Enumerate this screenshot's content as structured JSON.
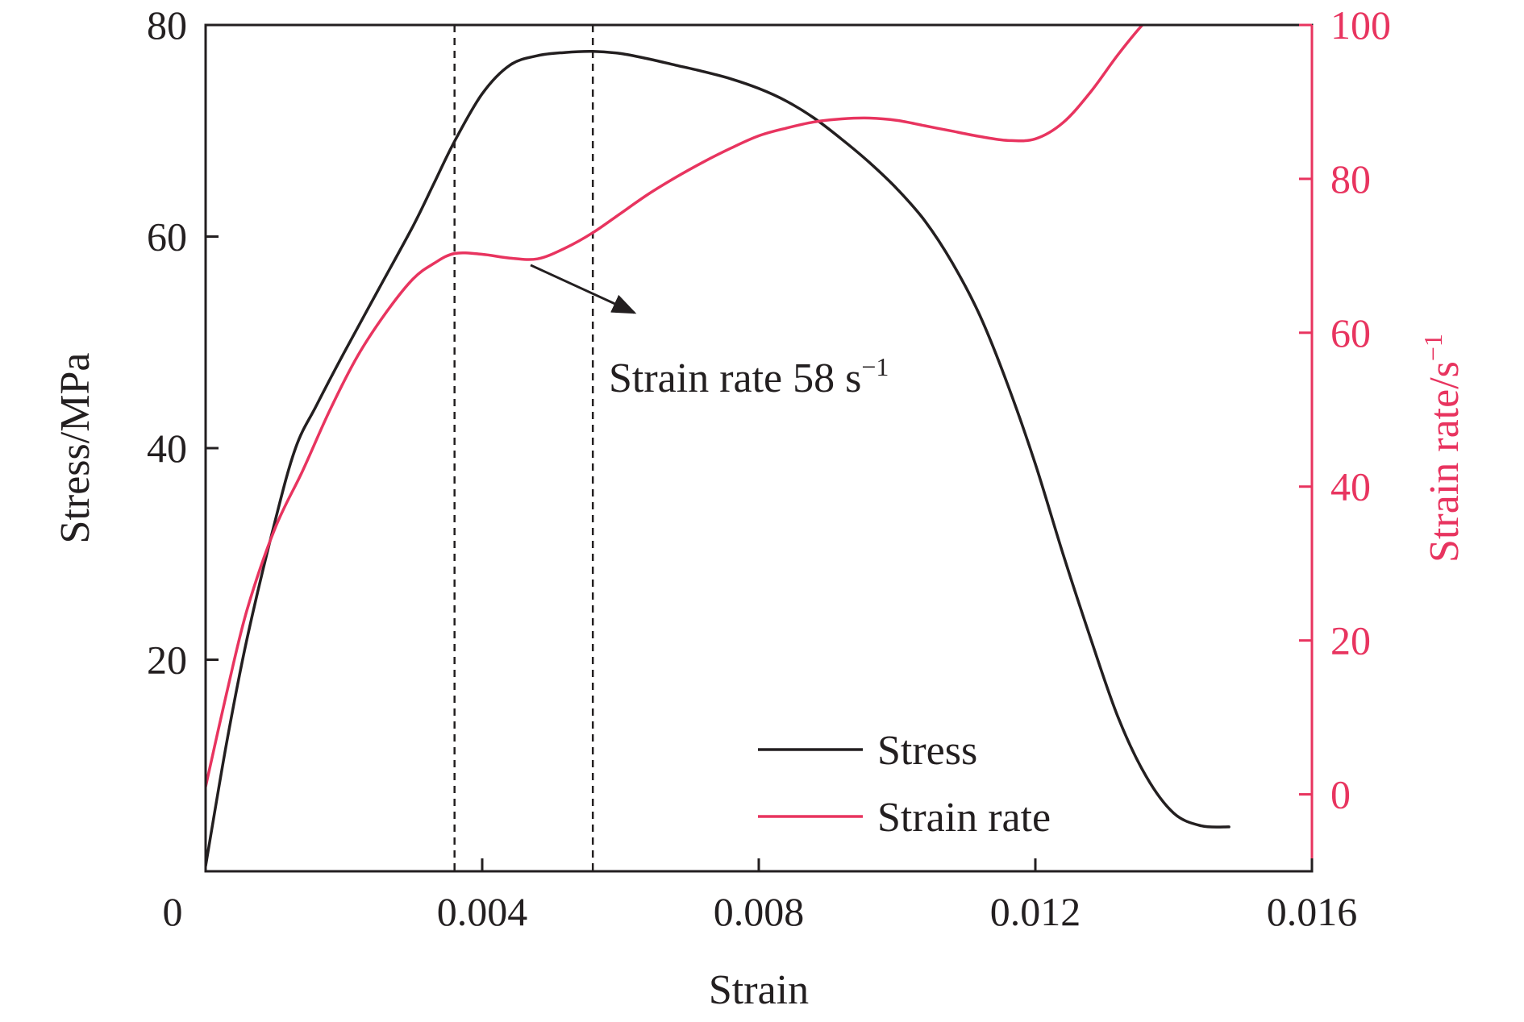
{
  "chart_data": {
    "type": "line",
    "xlabel": "Strain",
    "ylabel": "Stress/MPa",
    "y2label": "Strain rate/s",
    "y2label_sup": "−1",
    "xlim": [
      0,
      0.016
    ],
    "ylim": [
      0,
      80
    ],
    "y2lim": [
      -10,
      100
    ],
    "x_ticks": [
      0.004,
      0.008,
      0.012,
      0.016
    ],
    "x_tick_labels": [
      "0.004",
      "0.008",
      "0.012",
      "0.016"
    ],
    "x_origin_label": "0",
    "y_ticks": [
      20,
      40,
      60,
      80
    ],
    "y_tick_labels": [
      "20",
      "40",
      "60",
      "80"
    ],
    "y2_ticks": [
      0,
      20,
      40,
      60,
      80,
      100
    ],
    "y2_tick_labels": [
      "0",
      "20",
      "40",
      "60",
      "80",
      "100"
    ],
    "grid": false,
    "legend_position": "bottom-right",
    "colors": {
      "stress": "#231f20",
      "strain_rate": "#e8345f",
      "right_axis": "#e8345f"
    },
    "vlines": [
      0.0036,
      0.0056
    ],
    "annotation": {
      "text": "Strain rate 58 s",
      "sup": "−1",
      "arrow_from": [
        0.0047,
        57.3
      ],
      "arrow_to": [
        0.0062,
        52.8
      ]
    },
    "series": [
      {
        "name": "Stress",
        "axis": "left",
        "x": [
          0,
          0.0003,
          0.0006,
          0.001,
          0.0013,
          0.0016,
          0.002,
          0.0025,
          0.003,
          0.0033,
          0.0036,
          0.004,
          0.0044,
          0.0048,
          0.0052,
          0.0056,
          0.006,
          0.0064,
          0.0068,
          0.0072,
          0.0076,
          0.008,
          0.0084,
          0.0088,
          0.0092,
          0.0096,
          0.01,
          0.0104,
          0.0108,
          0.0112,
          0.0116,
          0.012,
          0.0124,
          0.0128,
          0.0132,
          0.0136,
          0.014,
          0.0144,
          0.0148
        ],
        "y": [
          0.5,
          12,
          22,
          33,
          40,
          44,
          49,
          55,
          61,
          65,
          69,
          73.5,
          76.2,
          77.1,
          77.4,
          77.5,
          77.3,
          76.8,
          76.2,
          75.6,
          74.9,
          74,
          72.8,
          71.2,
          69.2,
          67,
          64.5,
          61.5,
          57.5,
          52.5,
          46,
          38.5,
          30,
          22,
          14.5,
          9,
          5.5,
          4.3,
          4.2
        ]
      },
      {
        "name": "Strain rate",
        "axis": "right",
        "x": [
          0,
          0.0003,
          0.0006,
          0.001,
          0.0014,
          0.0018,
          0.0022,
          0.0026,
          0.003,
          0.0033,
          0.0036,
          0.004,
          0.0044,
          0.0048,
          0.0052,
          0.0056,
          0.006,
          0.0064,
          0.0068,
          0.0072,
          0.0076,
          0.008,
          0.0084,
          0.0088,
          0.0092,
          0.0096,
          0.01,
          0.0104,
          0.0108,
          0.0112,
          0.0116,
          0.012,
          0.0124,
          0.0128,
          0.0132,
          0.0136,
          0.014
        ],
        "y": [
          1,
          13,
          24,
          34.5,
          42,
          50,
          57,
          62.5,
          67,
          69,
          70.3,
          70.2,
          69.7,
          69.6,
          71,
          73,
          75.5,
          78,
          80.2,
          82.2,
          84,
          85.6,
          86.6,
          87.4,
          87.8,
          87.9,
          87.6,
          86.9,
          86.2,
          85.5,
          85,
          85.2,
          87.3,
          91.3,
          96.2,
          100.5,
          103.5
        ]
      }
    ]
  }
}
